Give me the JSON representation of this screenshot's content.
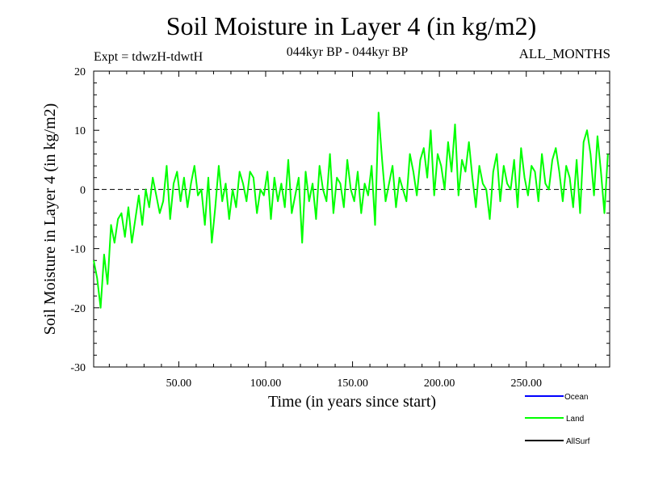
{
  "chart_data": {
    "type": "line",
    "title": "Soil Moisture in Layer 4 (in kg/m2)",
    "subtitle": "044kyr BP - 044kyr BP",
    "experiment": "Expt = tdwzH-tdwtH",
    "months": "ALL_MONTHS",
    "xlabel": "Time (in years since start)",
    "ylabel": "Soil Moisture in Layer 4 (in kg/m2)",
    "xlim": [
      1,
      298
    ],
    "ylim": [
      -30,
      20
    ],
    "x_ticks": [
      50,
      100,
      150,
      200,
      250
    ],
    "x_tick_labels": [
      "50.00",
      "100.00",
      "150.00",
      "200.00",
      "250.00"
    ],
    "y_ticks": [
      -30,
      -20,
      -10,
      0,
      10,
      20
    ],
    "y_tick_labels": [
      "-30",
      "-20",
      "-10",
      "0",
      "10",
      "20"
    ],
    "reference_line": 0,
    "legend": [
      {
        "name": "Ocean",
        "color": "#0000ff"
      },
      {
        "name": "Land",
        "color": "#00ff00"
      },
      {
        "name": "AllSurf",
        "color": "#000000"
      }
    ],
    "series": [
      {
        "name": "Land",
        "color": "#00ff00",
        "x": [
          1,
          3,
          5,
          7,
          9,
          11,
          13,
          15,
          17,
          19,
          21,
          23,
          25,
          27,
          29,
          31,
          33,
          35,
          37,
          39,
          41,
          43,
          45,
          47,
          49,
          51,
          53,
          55,
          57,
          59,
          61,
          63,
          65,
          67,
          69,
          71,
          73,
          75,
          77,
          79,
          81,
          83,
          85,
          87,
          89,
          91,
          93,
          95,
          97,
          99,
          101,
          103,
          105,
          107,
          109,
          111,
          113,
          115,
          117,
          119,
          121,
          123,
          125,
          127,
          129,
          131,
          133,
          135,
          137,
          139,
          141,
          143,
          145,
          147,
          149,
          151,
          153,
          155,
          157,
          159,
          161,
          163,
          165,
          167,
          169,
          171,
          173,
          175,
          177,
          179,
          181,
          183,
          185,
          187,
          189,
          191,
          193,
          195,
          197,
          199,
          201,
          203,
          205,
          207,
          209,
          211,
          213,
          215,
          217,
          219,
          221,
          223,
          225,
          227,
          229,
          231,
          233,
          235,
          237,
          239,
          241,
          243,
          245,
          247,
          249,
          251,
          253,
          255,
          257,
          259,
          261,
          263,
          265,
          267,
          269,
          271,
          273,
          275,
          277,
          279,
          281,
          283,
          285,
          287,
          289,
          291,
          293,
          295,
          297
        ],
        "values": [
          -12,
          -15,
          -20,
          -11,
          -16,
          -6,
          -9,
          -5,
          -4,
          -8,
          -3,
          -9,
          -5,
          -1,
          -6,
          0,
          -3,
          2,
          -1,
          -4,
          -2,
          4,
          -5,
          1,
          3,
          -2,
          2,
          -3,
          1,
          4,
          -1,
          0,
          -6,
          2,
          -9,
          -3,
          4,
          -2,
          1,
          -5,
          0,
          -3,
          3,
          1,
          -2,
          3,
          2,
          -4,
          0,
          -1,
          3,
          -5,
          2,
          -2,
          1,
          -3,
          5,
          -4,
          -1,
          2,
          -9,
          3,
          -2,
          1,
          -5,
          4,
          0,
          -2,
          6,
          -4,
          2,
          1,
          -3,
          5,
          0,
          -2,
          3,
          -4,
          1,
          -1,
          4,
          -6,
          13,
          5,
          -2,
          1,
          4,
          -3,
          2,
          0,
          -2,
          6,
          3,
          -1,
          5,
          7,
          2,
          10,
          -1,
          6,
          4,
          0,
          8,
          3,
          11,
          -1,
          5,
          3,
          8,
          2,
          -3,
          4,
          1,
          0,
          -5,
          3,
          6,
          -2,
          4,
          1,
          0,
          5,
          -3,
          7,
          2,
          -1,
          4,
          3,
          -2,
          6,
          1,
          0,
          5,
          7,
          3,
          -2,
          4,
          2,
          -3,
          5,
          -4,
          8,
          10,
          6,
          -1,
          9,
          3,
          -4,
          6
        ]
      }
    ]
  }
}
